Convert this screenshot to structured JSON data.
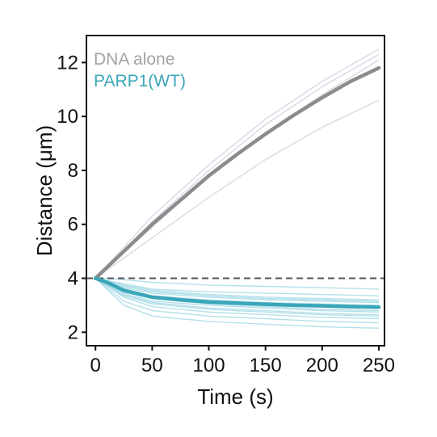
{
  "chart_data": {
    "type": "line",
    "xlabel": "Time (s)",
    "ylabel": "Distance (μm)",
    "xlim": [
      -8,
      255
    ],
    "ylim": [
      1.5,
      13
    ],
    "x_ticks": [
      0,
      50,
      100,
      150,
      200,
      250
    ],
    "y_ticks": [
      2,
      4,
      6,
      8,
      10,
      12
    ],
    "reference_line": {
      "y": 4,
      "style": "dashed",
      "color": "#555555"
    },
    "legend": {
      "placement": "top-left"
    },
    "series": [
      {
        "name": "DNA alone",
        "color": "#8c8c8c",
        "trace_color": "#d9cfe0",
        "mean": {
          "x": [
            0,
            25,
            50,
            75,
            100,
            125,
            150,
            175,
            200,
            225,
            250
          ],
          "y": [
            4.0,
            5.0,
            6.0,
            6.9,
            7.8,
            8.6,
            9.35,
            10.05,
            10.7,
            11.3,
            11.8
          ]
        },
        "traces": [
          {
            "x": [
              0,
              50,
              100,
              150,
              200,
              250
            ],
            "y": [
              4.0,
              6.3,
              8.2,
              9.9,
              11.3,
              12.5
            ]
          },
          {
            "x": [
              0,
              50,
              100,
              150,
              200,
              250
            ],
            "y": [
              4.0,
              6.1,
              8.0,
              9.7,
              11.1,
              12.3
            ]
          },
          {
            "x": [
              0,
              50,
              100,
              150,
              200,
              250
            ],
            "y": [
              4.0,
              5.9,
              7.8,
              9.4,
              10.8,
              12.1
            ]
          },
          {
            "x": [
              0,
              50,
              100,
              150,
              200,
              250
            ],
            "y": [
              4.0,
              5.5,
              7.0,
              8.4,
              9.6,
              10.6
            ]
          }
        ]
      },
      {
        "name": "PARP1(WT)",
        "color": "#3aa6b9",
        "trace_color": "#a6dbe6",
        "mean": {
          "x": [
            0,
            10,
            25,
            50,
            75,
            100,
            125,
            150,
            175,
            200,
            225,
            250
          ],
          "y": [
            4.0,
            3.85,
            3.55,
            3.3,
            3.2,
            3.12,
            3.08,
            3.04,
            3.0,
            2.98,
            2.95,
            2.93
          ]
        },
        "traces": [
          {
            "x": [
              0,
              25,
              50,
              100,
              150,
              200,
              250
            ],
            "y": [
              4.0,
              3.95,
              3.85,
              3.75,
              3.7,
              3.65,
              3.6
            ]
          },
          {
            "x": [
              0,
              25,
              50,
              100,
              150,
              200,
              250
            ],
            "y": [
              4.0,
              3.8,
              3.6,
              3.5,
              3.45,
              3.4,
              3.35
            ]
          },
          {
            "x": [
              0,
              25,
              50,
              100,
              150,
              200,
              250
            ],
            "y": [
              4.0,
              3.7,
              3.5,
              3.35,
              3.25,
              3.2,
              3.15
            ]
          },
          {
            "x": [
              0,
              25,
              50,
              100,
              150,
              200,
              250
            ],
            "y": [
              4.0,
              3.6,
              3.35,
              3.2,
              3.1,
              3.05,
              3.0
            ]
          },
          {
            "x": [
              0,
              25,
              50,
              100,
              150,
              200,
              250
            ],
            "y": [
              4.0,
              3.5,
              3.25,
              3.05,
              2.95,
              2.85,
              2.8
            ]
          },
          {
            "x": [
              0,
              25,
              50,
              100,
              150,
              200,
              250
            ],
            "y": [
              4.0,
              3.4,
              3.1,
              2.9,
              2.8,
              2.7,
              2.65
            ]
          },
          {
            "x": [
              0,
              25,
              50,
              100,
              150,
              200,
              250
            ],
            "y": [
              4.0,
              3.3,
              2.95,
              2.75,
              2.65,
              2.55,
              2.5
            ]
          },
          {
            "x": [
              0,
              25,
              50,
              100,
              150,
              200,
              250
            ],
            "y": [
              4.0,
              3.15,
              2.8,
              2.6,
              2.5,
              2.4,
              2.35
            ]
          },
          {
            "x": [
              0,
              25,
              50,
              100,
              150,
              200,
              250
            ],
            "y": [
              4.0,
              3.0,
              2.6,
              2.4,
              2.3,
              2.2,
              2.15
            ]
          },
          {
            "x": [
              0,
              25,
              50,
              100,
              150,
              200,
              250
            ],
            "y": [
              4.0,
              3.55,
              3.3,
              3.15,
              3.05,
              2.95,
              2.9
            ]
          },
          {
            "x": [
              0,
              25,
              50,
              100,
              150,
              200,
              250
            ],
            "y": [
              4.0,
              3.65,
              3.45,
              3.3,
              3.2,
              3.15,
              3.1
            ]
          },
          {
            "x": [
              0,
              25,
              50,
              100,
              150,
              200,
              250
            ],
            "y": [
              4.0,
              3.75,
              3.55,
              3.4,
              3.3,
              3.25,
              3.2
            ]
          },
          {
            "x": [
              0,
              25,
              50,
              100,
              150,
              200,
              250
            ],
            "y": [
              4.0,
              3.45,
              3.15,
              3.0,
              2.9,
              2.8,
              2.75
            ]
          },
          {
            "x": [
              0,
              25,
              50,
              100,
              150,
              200,
              250
            ],
            "y": [
              4.0,
              3.35,
              3.05,
              2.85,
              2.75,
              2.65,
              2.6
            ]
          }
        ]
      }
    ]
  }
}
